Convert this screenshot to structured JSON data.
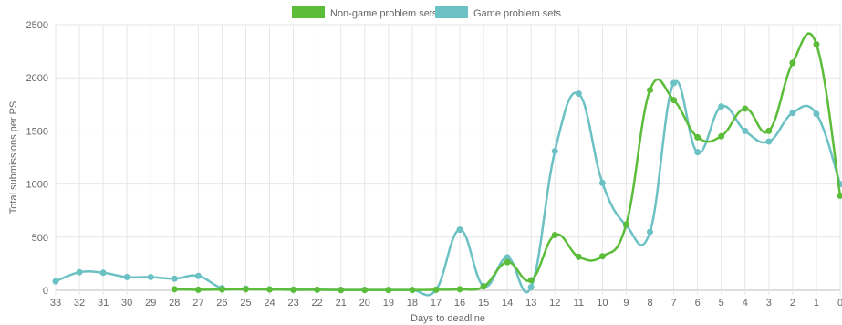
{
  "chart_data": {
    "type": "line",
    "xlabel": "Days to deadline",
    "ylabel": "Total submissions per PS",
    "ylim": [
      0,
      2500
    ],
    "yticks": [
      0,
      500,
      1000,
      1500,
      2000,
      2500
    ],
    "x": [
      33,
      32,
      31,
      30,
      29,
      28,
      27,
      26,
      25,
      24,
      23,
      22,
      21,
      20,
      19,
      18,
      17,
      16,
      15,
      14,
      13,
      12,
      11,
      10,
      9,
      8,
      7,
      6,
      5,
      4,
      3,
      2,
      1,
      0
    ],
    "grid": true,
    "legend_position": "top-center",
    "series": [
      {
        "name": "Non-game problem sets",
        "color": "#5bbd3a",
        "values": [
          null,
          null,
          null,
          null,
          null,
          10,
          5,
          8,
          10,
          8,
          5,
          5,
          3,
          3,
          3,
          3,
          5,
          10,
          35,
          265,
          95,
          520,
          315,
          320,
          620,
          1885,
          1790,
          1440,
          1450,
          1710,
          1500,
          2140,
          2315,
          890
        ]
      },
      {
        "name": "Game problem sets",
        "color": "#6cc1c4",
        "values": [
          85,
          170,
          165,
          125,
          125,
          110,
          135,
          20,
          15,
          10,
          5,
          5,
          3,
          3,
          3,
          3,
          5,
          570,
          40,
          310,
          30,
          1310,
          1850,
          1010,
          610,
          550,
          1950,
          1300,
          1730,
          1500,
          1400,
          1670,
          1660,
          1000
        ]
      }
    ]
  }
}
